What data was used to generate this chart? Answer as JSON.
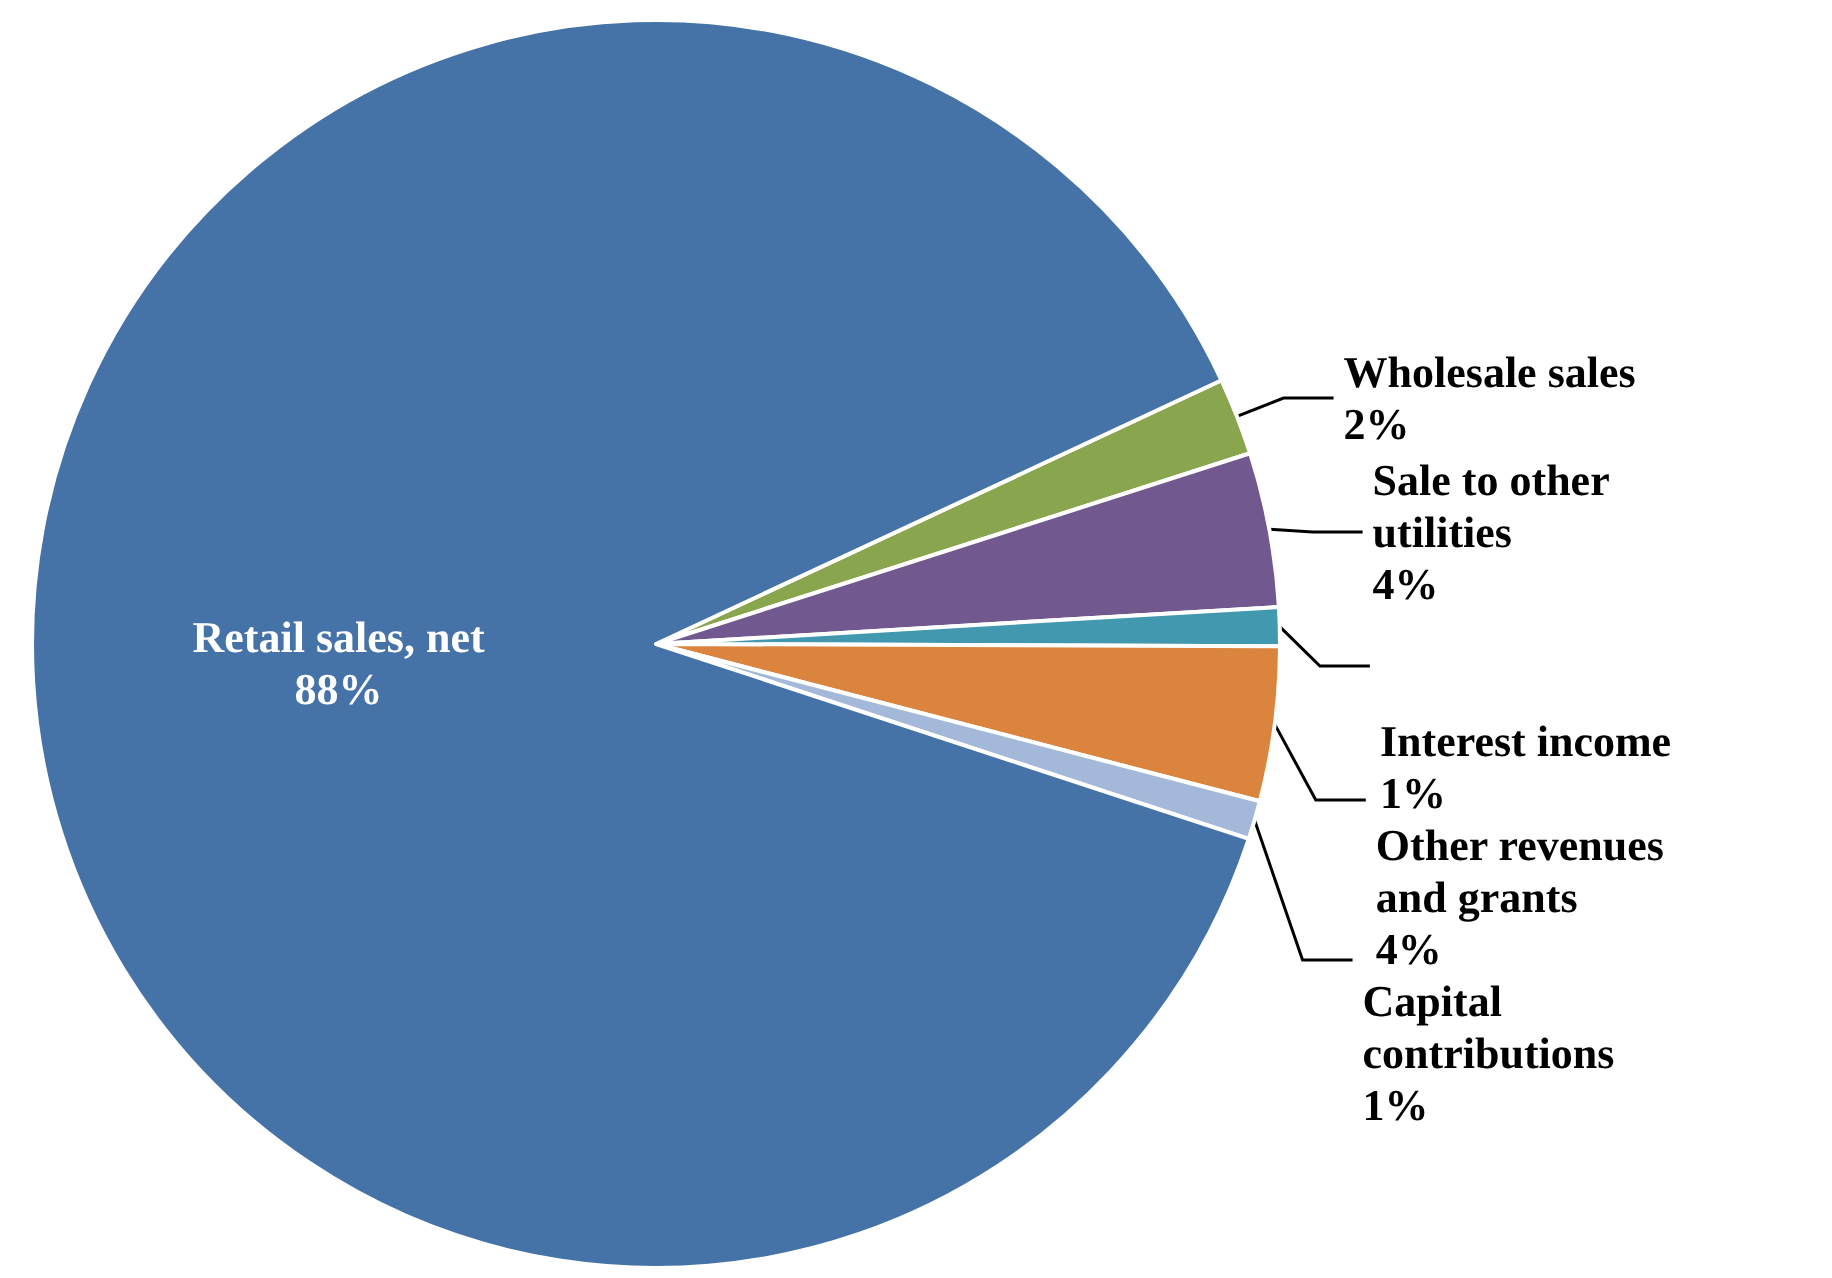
{
  "chart_data": {
    "type": "pie",
    "categories": [
      "Wholesale sales",
      "Sale to other utilities",
      "Interest income",
      "Other revenues and grants",
      "Capital contributions",
      "Retail sales, net"
    ],
    "values": [
      2,
      4,
      1,
      4,
      1,
      88
    ],
    "colors": [
      "#89a54e",
      "#71588f",
      "#4198af",
      "#db843d",
      "#a4b9da",
      "#4573a7"
    ],
    "value_labels": [
      "2%",
      "4%",
      "1%",
      "4%",
      "1%",
      "88%"
    ],
    "legend": false
  }
}
